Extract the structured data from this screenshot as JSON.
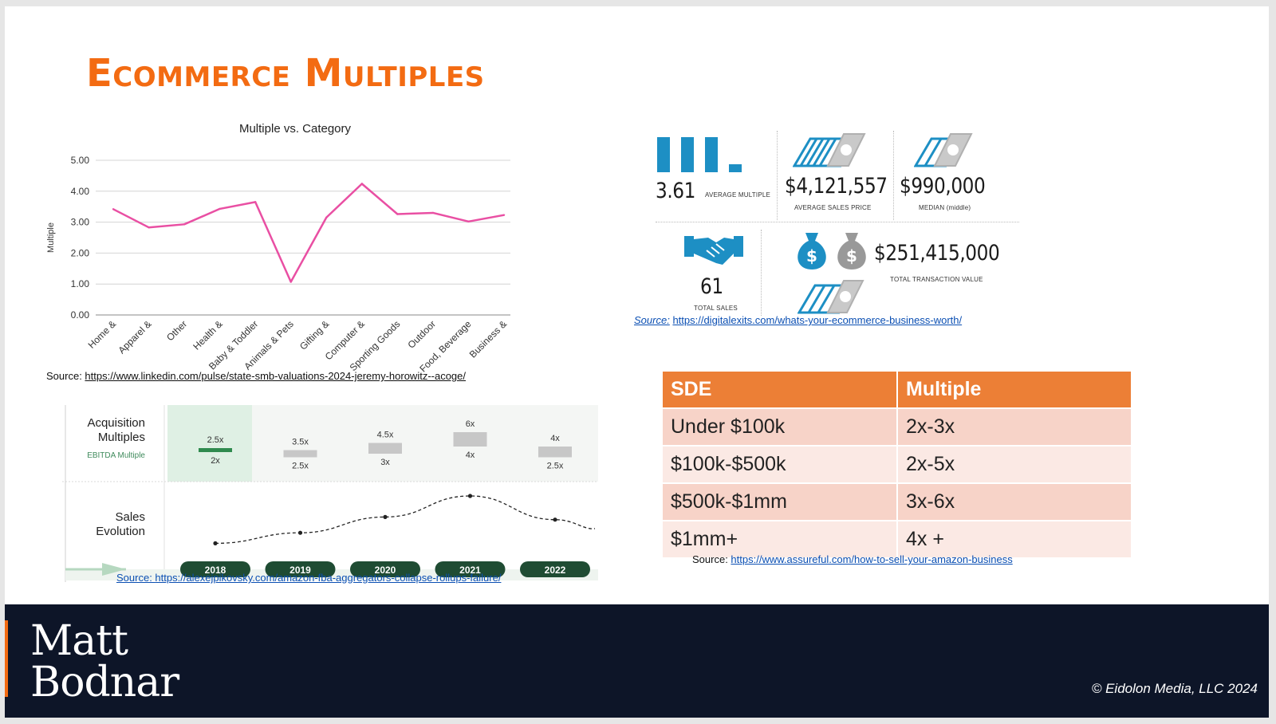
{
  "slide": {
    "title": "Ecommerce Multiples"
  },
  "chart_data": [
    {
      "type": "line",
      "title": "Multiple vs. Category",
      "xlabel": "",
      "ylabel": "Multiple",
      "ylim": [
        0,
        5
      ],
      "yticks": [
        "0.00",
        "1.00",
        "2.00",
        "3.00",
        "4.00",
        "5.00"
      ],
      "grid": true,
      "color": "#e94fa3",
      "categories": [
        "Home &",
        "Apparel &",
        "Other",
        "Health &",
        "Baby & Toddler",
        "Animals & Pets",
        "Gifting &",
        "Computer &",
        "Sporting Goods",
        "Outdoor",
        "Food, Beverage",
        "Business &"
      ],
      "values": [
        3.42,
        2.83,
        2.93,
        3.43,
        3.65,
        1.07,
        3.15,
        4.24,
        3.26,
        3.3,
        3.02,
        3.23
      ]
    },
    {
      "type": "bar",
      "title": "",
      "row_labels": [
        "Acquisition Multiples",
        "EBITDA Multiple",
        "Sales Evolution"
      ],
      "categories": [
        "2018",
        "2019",
        "2020",
        "2021",
        "2022"
      ],
      "ebitda_high_labels": [
        "2.5x",
        "3.5x",
        "4.5x",
        "6x",
        "4x"
      ],
      "ebitda_low_labels": [
        "2x",
        "2.5x",
        "3x",
        "4x",
        "2.5x"
      ],
      "ebitda_low": [
        2,
        2.5,
        3,
        4,
        2.5
      ],
      "ebitda_high": [
        2.5,
        3.5,
        4.5,
        6,
        4
      ],
      "sales_evolution": [
        0.1,
        0.3,
        0.6,
        1.0,
        0.55
      ]
    }
  ],
  "line_chart_source": {
    "prefix": "Source: ",
    "url": "https://www.linkedin.com/pulse/state-smb-valuations-2024-jeremy-horowitz--acoge/"
  },
  "stats": {
    "average_multiple": {
      "value": "3.61",
      "caption": "AVERAGE MULTIPLE"
    },
    "average_sales_price": {
      "value": "$4,121,557",
      "caption": "AVERAGE SALES PRICE"
    },
    "median": {
      "value": "$990,000",
      "caption": "MEDIAN (middle)"
    },
    "total_sales": {
      "value": "61",
      "caption": "TOTAL SALES"
    },
    "total_transaction_value": {
      "value": "$251,415,000",
      "caption": "TOTAL TRANSACTION VALUE"
    },
    "icon_color": "#1d8fc4",
    "source_prefix": "Source:",
    "source_url": "https://digitalexits.com/whats-your-ecommerce-business-worth/"
  },
  "acquisition_source": {
    "prefix": "Source: ",
    "url": "https://alexejpikovsky.com/amazon-fba-aggregators-collapse-rollups-failure/"
  },
  "sde_table": {
    "headers": [
      "SDE",
      "Multiple"
    ],
    "rows": [
      [
        "Under $100k",
        "2x-3x"
      ],
      [
        "$100k-$500k",
        "2x-5x"
      ],
      [
        "$500k-$1mm",
        "3x-6x"
      ],
      [
        "$1mm+",
        "4x +"
      ]
    ],
    "source_prefix": "Source: ",
    "source_url": "https://www.assureful.com/how-to-sell-your-amazon-business"
  },
  "footer": {
    "brand_line1": "Matt",
    "brand_line2": "Bodnar",
    "copyright": "© Eidolon Media, LLC 2024"
  }
}
